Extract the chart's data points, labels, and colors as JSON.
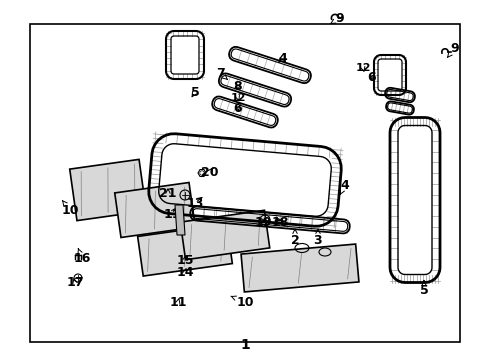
{
  "fig_width": 4.9,
  "fig_height": 3.6,
  "dpi": 100,
  "bg_color": "#ffffff",
  "border_color": "#000000"
}
